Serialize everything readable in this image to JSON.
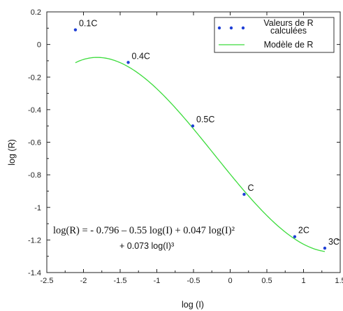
{
  "chart_data": {
    "type": "scatter",
    "xlabel": "log (I)",
    "ylabel": "log (R)",
    "xlim": [
      -2.5,
      1.5
    ],
    "ylim": [
      -1.4,
      0.2
    ],
    "x_ticks": [
      "-2.5",
      "-2",
      "-1.5",
      "-1",
      "-0.5",
      "0",
      "0.5",
      "1",
      "1.5"
    ],
    "y_ticks": [
      "0.2",
      "0",
      "-0.2",
      "-0.4",
      "-0.6",
      "-0.8",
      "-1",
      "-1.2",
      "-1.4"
    ],
    "grid": false,
    "legend_position": "top-right",
    "series": [
      {
        "name": "Valeurs de R calculées",
        "name_lines": [
          "Valeurs de R",
          "calculées"
        ],
        "kind": "points",
        "color": "#1f3fd6",
        "points": [
          {
            "x": -2.11,
            "y": 0.09,
            "label": "0.1C"
          },
          {
            "x": -1.39,
            "y": -0.11,
            "label": "0.4C"
          },
          {
            "x": -0.51,
            "y": -0.5,
            "label": "0.5C"
          },
          {
            "x": 0.19,
            "y": -0.92,
            "label": "C"
          },
          {
            "x": 0.88,
            "y": -1.18,
            "label": "2C"
          },
          {
            "x": 1.29,
            "y": -1.25,
            "label": "3C"
          }
        ]
      },
      {
        "name": "Modèle de R",
        "kind": "curve",
        "color": "#3cdc3c",
        "coefficients": [
          -0.796,
          -0.55,
          0.047,
          0.073
        ],
        "x_range": [
          -2.11,
          1.29
        ]
      }
    ],
    "equation": {
      "line1": "log(R) = - 0.796 – 0.55 log(I) + 0.047 log(I)²",
      "line2": "+ 0.073 log(I)³"
    }
  }
}
